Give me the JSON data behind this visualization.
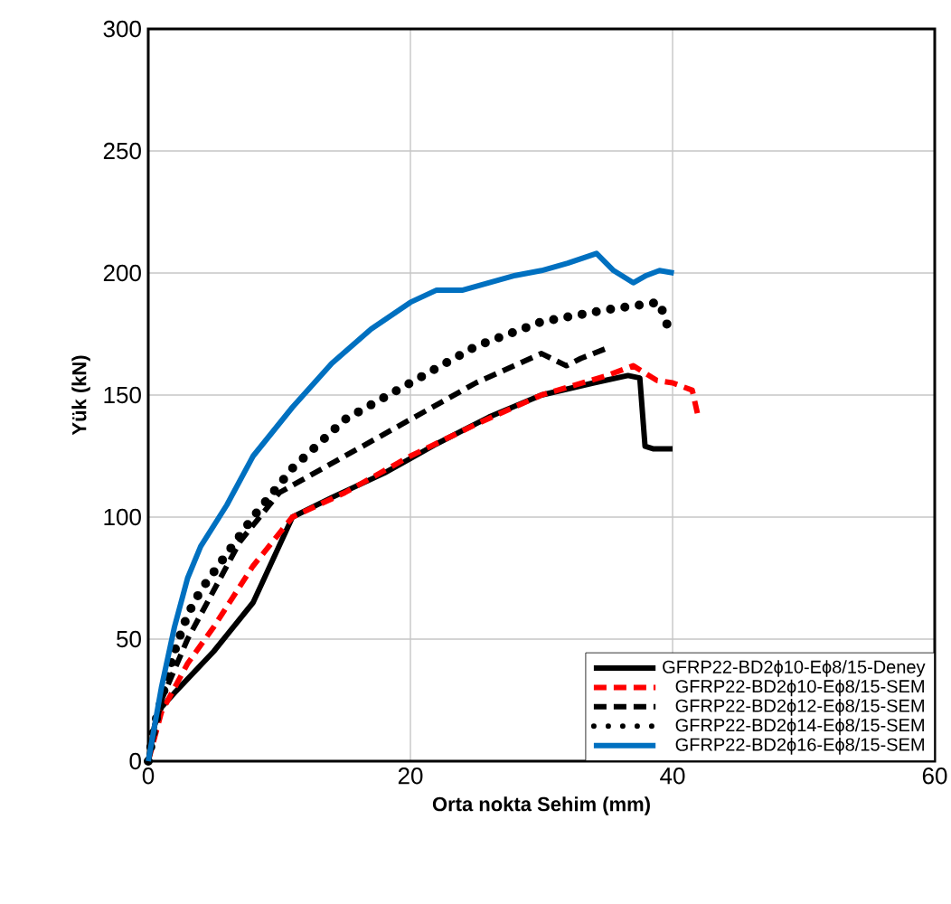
{
  "chart_data": {
    "type": "line",
    "xlabel": "Orta nokta Sehim (mm)",
    "ylabel": "Yük (kN)",
    "xlim": [
      0,
      60
    ],
    "ylim": [
      0,
      300
    ],
    "xticks": [
      0,
      20,
      40,
      60
    ],
    "yticks": [
      0,
      50,
      100,
      150,
      200,
      250,
      300
    ],
    "grid": true,
    "legend": "bottom right",
    "marker": "none",
    "series": [
      {
        "name": "GFRP22-BD2ϕ10-Eϕ8/15-Deney",
        "color": "#000000",
        "line_style": "solid",
        "x": [
          0,
          0.5,
          1,
          2,
          5,
          8,
          11,
          14,
          18,
          22,
          26,
          30,
          34,
          36.6,
          37.5,
          37.9,
          38.5,
          40
        ],
        "values": [
          0,
          15,
          22,
          28,
          45,
          65,
          100,
          108,
          118,
          130,
          141,
          150,
          155,
          158,
          157,
          129,
          128,
          128
        ]
      },
      {
        "name": "GFRP22-BD2ϕ10-Eϕ8/15-SEM",
        "color": "#ff0000",
        "line_style": "dashed",
        "x": [
          0,
          1,
          3,
          5,
          8,
          11,
          15,
          20,
          25,
          30,
          35,
          37,
          38.8,
          40,
          41.5,
          42
        ],
        "values": [
          0,
          20,
          40,
          55,
          80,
          100,
          110,
          125,
          138,
          150,
          158,
          162,
          156,
          155,
          152,
          140
        ]
      },
      {
        "name": "GFRP22-BD2ϕ12-Eϕ8/15-SEM",
        "color": "#000000",
        "line_style": "dashed",
        "x": [
          0,
          1,
          3,
          5,
          7,
          10,
          15,
          20,
          25,
          30,
          31.9,
          33,
          34.9
        ],
        "values": [
          0,
          25,
          50,
          70,
          90,
          110,
          125,
          140,
          155,
          167,
          162,
          165,
          169
        ]
      },
      {
        "name": "GFRP22-BD2ϕ14-Eϕ8/15-SEM",
        "color": "#000000",
        "line_style": "dotted",
        "x": [
          0,
          0.5,
          1,
          2,
          3,
          4,
          6,
          8,
          11,
          15,
          20,
          25,
          30,
          35,
          39,
          39.7
        ],
        "values": [
          0,
          15,
          25,
          45,
          60,
          70,
          85,
          100,
          120,
          140,
          155,
          170,
          180,
          185,
          188,
          177
        ]
      },
      {
        "name": "GFRP22-BD2ϕ16-Eϕ8/15-SEM",
        "color": "#0070c0",
        "line_style": "solid",
        "x": [
          0,
          1,
          2,
          3,
          4,
          6,
          8,
          11,
          14,
          17,
          20,
          22,
          24,
          26,
          28,
          30,
          32,
          34.2,
          35.5,
          37,
          38,
          39,
          40.1
        ],
        "values": [
          0,
          30,
          55,
          75,
          88,
          105,
          125,
          145,
          163,
          177,
          188,
          193,
          193,
          196,
          199,
          201,
          204,
          208,
          201,
          196,
          199,
          201,
          200
        ]
      }
    ]
  }
}
